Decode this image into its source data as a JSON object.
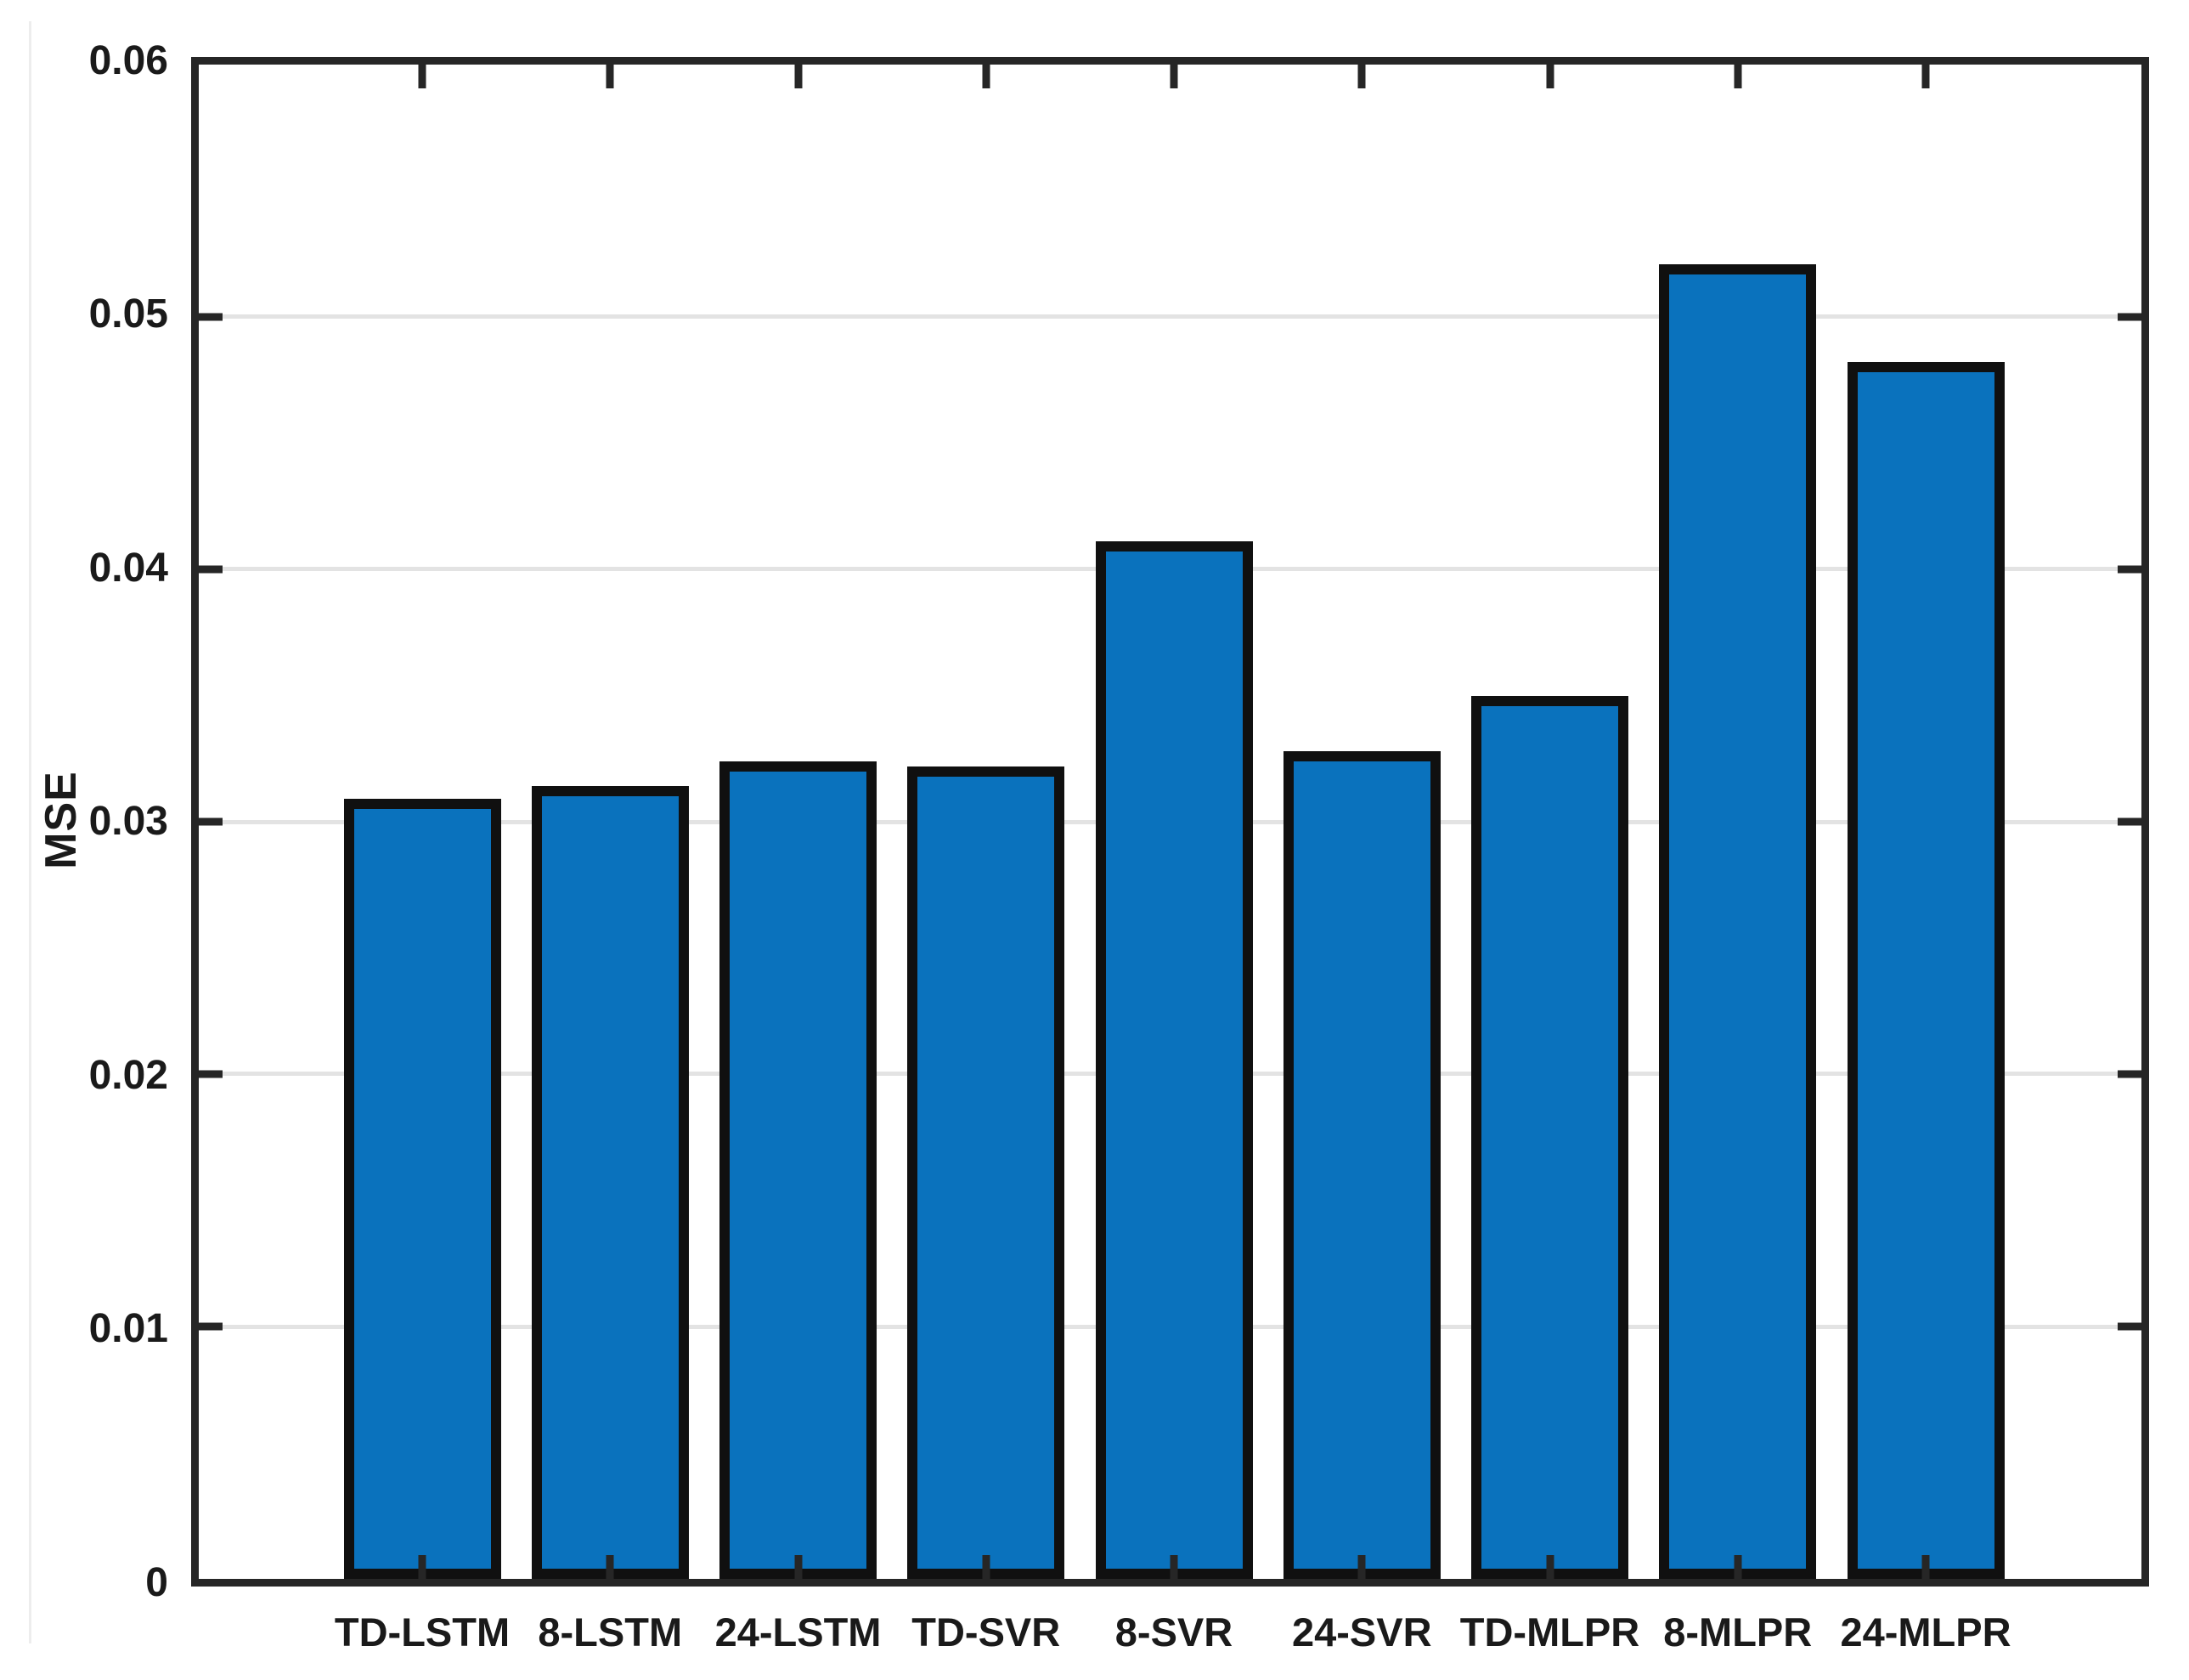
{
  "figure": {
    "description": "Bar chart comparing MSE of forecasting models",
    "background_color": "#ffffff"
  },
  "chart_data": {
    "type": "bar",
    "title": "",
    "xlabel": "",
    "ylabel": "MSE",
    "categories": [
      "TD-LSTM",
      "8-LSTM",
      "24-LSTM",
      "TD-SVR",
      "8-SVR",
      "24-SVR",
      "TD-MLPR",
      "8-MLPR",
      "24-MLPR"
    ],
    "values": [
      0.0309,
      0.0314,
      0.0324,
      0.0322,
      0.0411,
      0.0328,
      0.035,
      0.0521,
      0.0482
    ],
    "ylim": [
      0,
      0.06
    ],
    "yticks": [
      0,
      0.01,
      0.02,
      0.03,
      0.04,
      0.05,
      0.06
    ],
    "ytick_labels": [
      "0",
      "0.01",
      "0.02",
      "0.03",
      "0.04",
      "0.05",
      "0.06"
    ],
    "grid": "horizontal-only",
    "gridline_values": [
      0.01,
      0.02,
      0.03,
      0.04,
      0.05
    ],
    "legend": "none",
    "tick_direction": "in",
    "box": "on",
    "bar_color": "#0a72bd",
    "bar_border_color": "#101010",
    "axis_color": "#262626",
    "grid_color": "#e3e3e3",
    "text_color": "#1a1a1a"
  }
}
